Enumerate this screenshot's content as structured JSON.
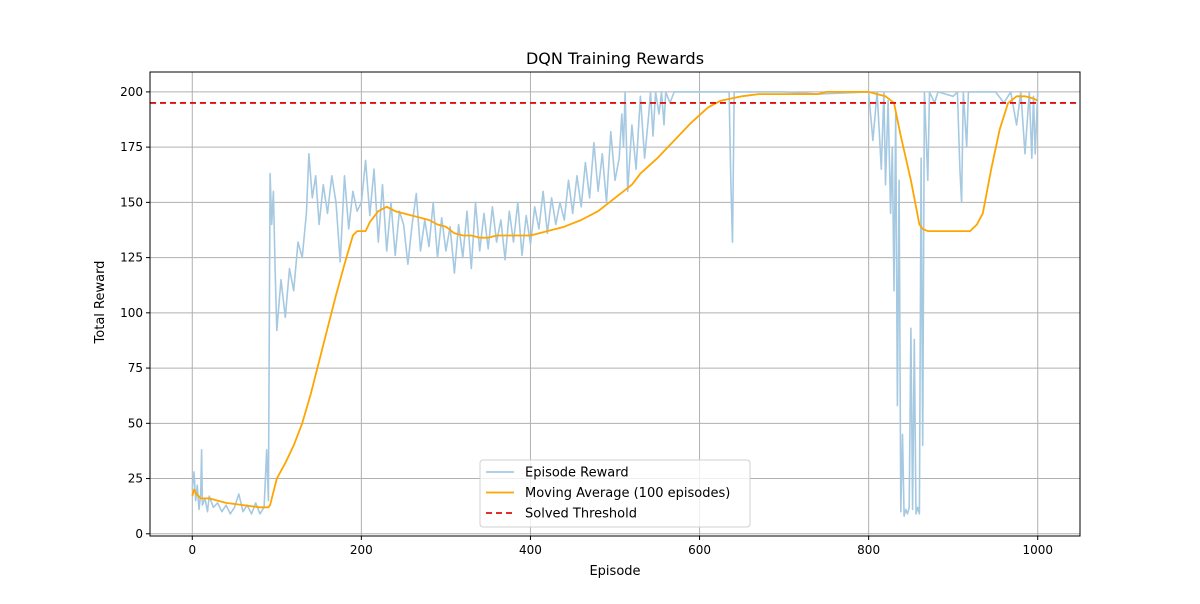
{
  "chart_data": {
    "type": "line",
    "title": "DQN Training Rewards",
    "xlabel": "Episode",
    "ylabel": "Total Reward",
    "xlim": [
      -50,
      1050
    ],
    "ylim": [
      -1,
      209
    ],
    "x_ticks": [
      0,
      200,
      400,
      600,
      800,
      1000
    ],
    "y_ticks": [
      0,
      25,
      50,
      75,
      100,
      125,
      150,
      175,
      200
    ],
    "grid": true,
    "legend_position": "bottom-center",
    "series": [
      {
        "name": "Episode Reward",
        "color": "#a6c9e2",
        "style": "solid",
        "points": [
          [
            0,
            20
          ],
          [
            2,
            28
          ],
          [
            4,
            15
          ],
          [
            6,
            22
          ],
          [
            8,
            11
          ],
          [
            10,
            18
          ],
          [
            11,
            38
          ],
          [
            12,
            13
          ],
          [
            15,
            16
          ],
          [
            18,
            10
          ],
          [
            20,
            17
          ],
          [
            25,
            12
          ],
          [
            30,
            14
          ],
          [
            35,
            10
          ],
          [
            40,
            13
          ],
          [
            45,
            9
          ],
          [
            50,
            12
          ],
          [
            55,
            18
          ],
          [
            60,
            10
          ],
          [
            65,
            13
          ],
          [
            70,
            9
          ],
          [
            75,
            14
          ],
          [
            80,
            9
          ],
          [
            85,
            12
          ],
          [
            88,
            38
          ],
          [
            90,
            15
          ],
          [
            92,
            163
          ],
          [
            94,
            140
          ],
          [
            96,
            155
          ],
          [
            98,
            120
          ],
          [
            100,
            92
          ],
          [
            105,
            115
          ],
          [
            110,
            98
          ],
          [
            115,
            120
          ],
          [
            120,
            110
          ],
          [
            125,
            132
          ],
          [
            130,
            125
          ],
          [
            135,
            145
          ],
          [
            138,
            172
          ],
          [
            142,
            152
          ],
          [
            146,
            162
          ],
          [
            150,
            140
          ],
          [
            155,
            158
          ],
          [
            160,
            145
          ],
          [
            165,
            162
          ],
          [
            170,
            150
          ],
          [
            175,
            123
          ],
          [
            180,
            162
          ],
          [
            185,
            138
          ],
          [
            190,
            155
          ],
          [
            195,
            146
          ],
          [
            200,
            150
          ],
          [
            205,
            169
          ],
          [
            210,
            144
          ],
          [
            215,
            165
          ],
          [
            220,
            132
          ],
          [
            225,
            158
          ],
          [
            230,
            128
          ],
          [
            235,
            150
          ],
          [
            240,
            126
          ],
          [
            245,
            146
          ],
          [
            250,
            140
          ],
          [
            255,
            122
          ],
          [
            260,
            140
          ],
          [
            265,
            154
          ],
          [
            270,
            128
          ],
          [
            275,
            142
          ],
          [
            280,
            130
          ],
          [
            285,
            150
          ],
          [
            290,
            125
          ],
          [
            295,
            143
          ],
          [
            300,
            128
          ],
          [
            305,
            139
          ],
          [
            310,
            118
          ],
          [
            315,
            140
          ],
          [
            320,
            125
          ],
          [
            325,
            146
          ],
          [
            330,
            120
          ],
          [
            335,
            150
          ],
          [
            340,
            128
          ],
          [
            345,
            145
          ],
          [
            350,
            129
          ],
          [
            355,
            148
          ],
          [
            360,
            132
          ],
          [
            365,
            142
          ],
          [
            370,
            124
          ],
          [
            375,
            146
          ],
          [
            380,
            132
          ],
          [
            385,
            150
          ],
          [
            390,
            126
          ],
          [
            395,
            144
          ],
          [
            400,
            131
          ],
          [
            405,
            148
          ],
          [
            410,
            138
          ],
          [
            415,
            155
          ],
          [
            420,
            136
          ],
          [
            425,
            152
          ],
          [
            430,
            140
          ],
          [
            435,
            150
          ],
          [
            440,
            142
          ],
          [
            445,
            160
          ],
          [
            450,
            145
          ],
          [
            455,
            162
          ],
          [
            460,
            148
          ],
          [
            465,
            168
          ],
          [
            470,
            152
          ],
          [
            475,
            177
          ],
          [
            480,
            155
          ],
          [
            485,
            172
          ],
          [
            490,
            150
          ],
          [
            495,
            182
          ],
          [
            500,
            160
          ],
          [
            505,
            170
          ],
          [
            508,
            190
          ],
          [
            510,
            175
          ],
          [
            512,
            200
          ],
          [
            515,
            155
          ],
          [
            520,
            185
          ],
          [
            525,
            165
          ],
          [
            530,
            198
          ],
          [
            535,
            170
          ],
          [
            540,
            190
          ],
          [
            542,
            200
          ],
          [
            545,
            180
          ],
          [
            548,
            200
          ],
          [
            552,
            190
          ],
          [
            555,
            200
          ],
          [
            558,
            185
          ],
          [
            560,
            200
          ],
          [
            565,
            195
          ],
          [
            570,
            200
          ],
          [
            600,
            200
          ],
          [
            635,
            200
          ],
          [
            637,
            160
          ],
          [
            639,
            132
          ],
          [
            641,
            200
          ],
          [
            700,
            200
          ],
          [
            740,
            199
          ],
          [
            800,
            200
          ],
          [
            805,
            178
          ],
          [
            810,
            200
          ],
          [
            815,
            165
          ],
          [
            818,
            200
          ],
          [
            820,
            158
          ],
          [
            823,
            196
          ],
          [
            826,
            145
          ],
          [
            828,
            175
          ],
          [
            830,
            110
          ],
          [
            832,
            190
          ],
          [
            834,
            58
          ],
          [
            836,
            160
          ],
          [
            838,
            10
          ],
          [
            840,
            45
          ],
          [
            842,
            8
          ],
          [
            844,
            11
          ],
          [
            846,
            9
          ],
          [
            848,
            12
          ],
          [
            850,
            93
          ],
          [
            852,
            11
          ],
          [
            854,
            88
          ],
          [
            856,
            9
          ],
          [
            858,
            12
          ],
          [
            860,
            9
          ],
          [
            862,
            170
          ],
          [
            864,
            40
          ],
          [
            866,
            200
          ],
          [
            870,
            160
          ],
          [
            872,
            200
          ],
          [
            878,
            195
          ],
          [
            882,
            200
          ],
          [
            900,
            198
          ],
          [
            905,
            200
          ],
          [
            908,
            165
          ],
          [
            910,
            150
          ],
          [
            912,
            200
          ],
          [
            916,
            175
          ],
          [
            918,
            200
          ],
          [
            930,
            200
          ],
          [
            950,
            200
          ],
          [
            960,
            195
          ],
          [
            968,
            200
          ],
          [
            975,
            185
          ],
          [
            980,
            200
          ],
          [
            985,
            172
          ],
          [
            990,
            200
          ],
          [
            993,
            170
          ],
          [
            995,
            198
          ],
          [
            997,
            172
          ],
          [
            1000,
            200
          ]
        ]
      },
      {
        "name": "Moving Average (100 episodes)",
        "color": "#ffa500",
        "style": "solid",
        "points": [
          [
            0,
            17
          ],
          [
            2,
            20
          ],
          [
            5,
            18
          ],
          [
            10,
            16
          ],
          [
            20,
            16
          ],
          [
            40,
            14
          ],
          [
            60,
            13
          ],
          [
            80,
            12
          ],
          [
            90,
            12
          ],
          [
            92,
            13
          ],
          [
            100,
            25
          ],
          [
            110,
            32
          ],
          [
            120,
            40
          ],
          [
            130,
            50
          ],
          [
            140,
            63
          ],
          [
            150,
            78
          ],
          [
            160,
            93
          ],
          [
            170,
            108
          ],
          [
            180,
            122
          ],
          [
            190,
            135
          ],
          [
            195,
            137
          ],
          [
            205,
            137
          ],
          [
            210,
            141
          ],
          [
            220,
            146
          ],
          [
            230,
            148
          ],
          [
            240,
            146
          ],
          [
            250,
            145
          ],
          [
            260,
            144
          ],
          [
            270,
            143
          ],
          [
            280,
            142
          ],
          [
            290,
            140
          ],
          [
            300,
            139
          ],
          [
            310,
            136
          ],
          [
            320,
            135
          ],
          [
            330,
            135
          ],
          [
            340,
            134
          ],
          [
            350,
            134
          ],
          [
            360,
            135
          ],
          [
            380,
            135
          ],
          [
            400,
            135
          ],
          [
            420,
            137
          ],
          [
            440,
            139
          ],
          [
            460,
            142
          ],
          [
            480,
            146
          ],
          [
            500,
            152
          ],
          [
            520,
            158
          ],
          [
            530,
            163
          ],
          [
            550,
            170
          ],
          [
            570,
            178
          ],
          [
            590,
            186
          ],
          [
            610,
            193
          ],
          [
            625,
            196
          ],
          [
            650,
            198
          ],
          [
            670,
            199
          ],
          [
            700,
            199
          ],
          [
            740,
            199
          ],
          [
            750,
            200
          ],
          [
            800,
            200
          ],
          [
            810,
            199
          ],
          [
            820,
            198
          ],
          [
            830,
            195
          ],
          [
            838,
            180
          ],
          [
            850,
            160
          ],
          [
            860,
            140
          ],
          [
            864,
            138
          ],
          [
            870,
            137
          ],
          [
            880,
            137
          ],
          [
            900,
            137
          ],
          [
            920,
            137
          ],
          [
            928,
            140
          ],
          [
            935,
            145
          ],
          [
            945,
            165
          ],
          [
            955,
            183
          ],
          [
            965,
            195
          ],
          [
            975,
            198
          ],
          [
            985,
            198
          ],
          [
            995,
            197
          ],
          [
            1000,
            196
          ]
        ]
      },
      {
        "name": "Solved Threshold",
        "color": "#dd1111",
        "style": "dashed",
        "value": 195
      }
    ]
  }
}
